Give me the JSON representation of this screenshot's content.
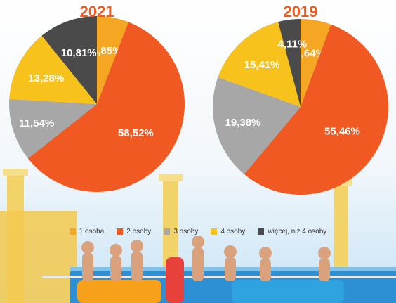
{
  "chart_data": [
    {
      "type": "pie",
      "title": "2021",
      "categories": [
        "1 osoba",
        "2 osoby",
        "3 osoby",
        "4 osoby",
        "więcej, niż 4 osoby"
      ],
      "values": [
        5.85,
        58.52,
        11.54,
        13.28,
        10.81
      ],
      "labels": [
        "5,85%",
        "58,52%",
        "11,54%",
        "13,28%",
        "10,81%"
      ]
    },
    {
      "type": "pie",
      "title": "2019",
      "categories": [
        "1 osoba",
        "2 osoby",
        "3 osoby",
        "4 osoby",
        "więcej, niż 4 osoby"
      ],
      "values": [
        5.64,
        55.46,
        19.38,
        15.41,
        4.11
      ],
      "labels": [
        "5,64%",
        "55,46%",
        "19,38%",
        "15,41%",
        "4,11%"
      ]
    }
  ],
  "legend": [
    {
      "label": "1 osoba",
      "color": "#f5a623"
    },
    {
      "label": "2 osoby",
      "color": "#f05a22"
    },
    {
      "label": "3 osoby",
      "color": "#a7a7a7"
    },
    {
      "label": "4 osoby",
      "color": "#f7c21b"
    },
    {
      "label": "więcej, niż 4 osoby",
      "color": "#4a4a4a"
    }
  ],
  "colors": {
    "year_title": "#f05a22",
    "background_sky": "#cfe6f5",
    "background_pool": "#2d8fd4"
  }
}
